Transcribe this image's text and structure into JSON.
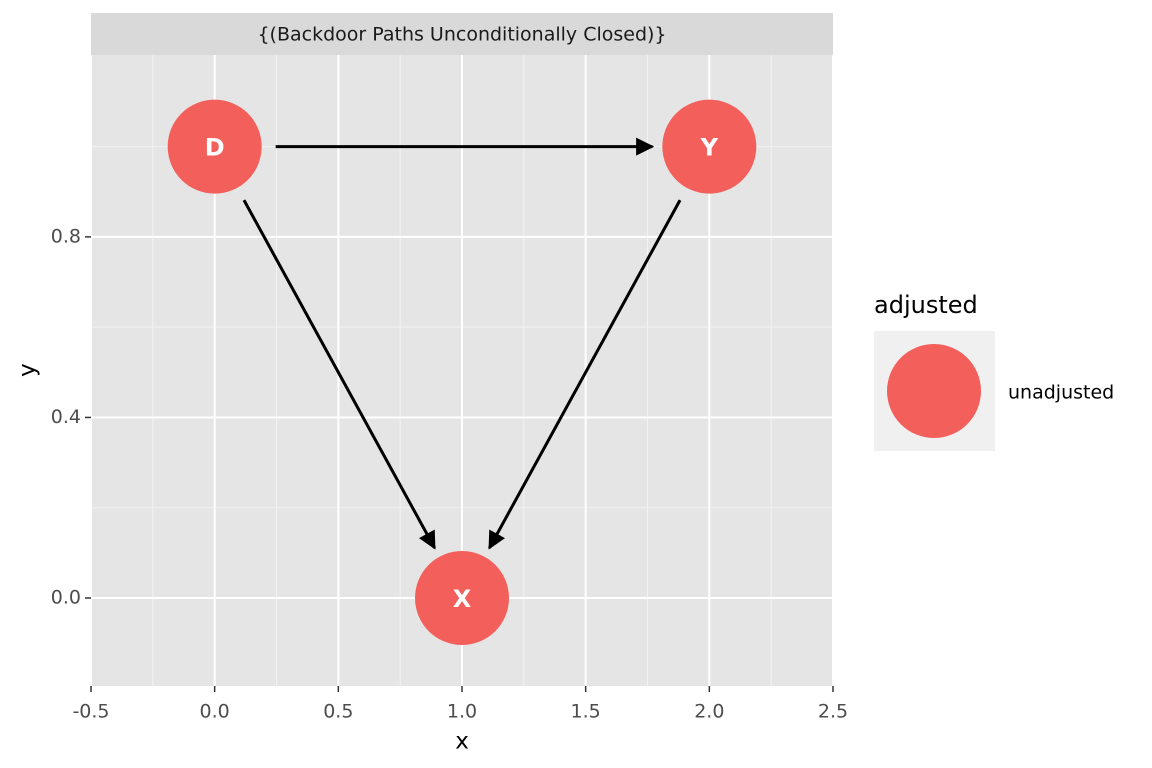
{
  "chart_data": {
    "type": "dag",
    "title": "{(Backdoor Paths Unconditionally Closed)}",
    "x_label": "x",
    "y_label": "y",
    "legend_title": "adjusted",
    "labels": [
      "D",
      "Y",
      "X"
    ],
    "x": [
      0,
      2,
      1
    ],
    "series": [
      {
        "name": "unadjusted",
        "color": "#f35f5a",
        "values": [
          1,
          1,
          0
        ]
      }
    ],
    "edges": [
      [
        "D",
        "Y"
      ],
      [
        "D",
        "X"
      ],
      [
        "Y",
        "X"
      ]
    ],
    "xlim": [
      -0.5,
      2.5
    ],
    "ylim": [
      -0.195,
      1.203
    ],
    "xticks": [
      -0.5,
      {
        "value": 0,
        "label": "0.0"
      },
      0.5,
      {
        "value": 1,
        "label": "1.0"
      },
      1.5,
      {
        "value": 2,
        "label": "2.0"
      },
      2.5
    ],
    "yticks": [
      {
        "value": 0,
        "label": "0.0"
      },
      0.4,
      0.8
    ],
    "grid": true
  }
}
